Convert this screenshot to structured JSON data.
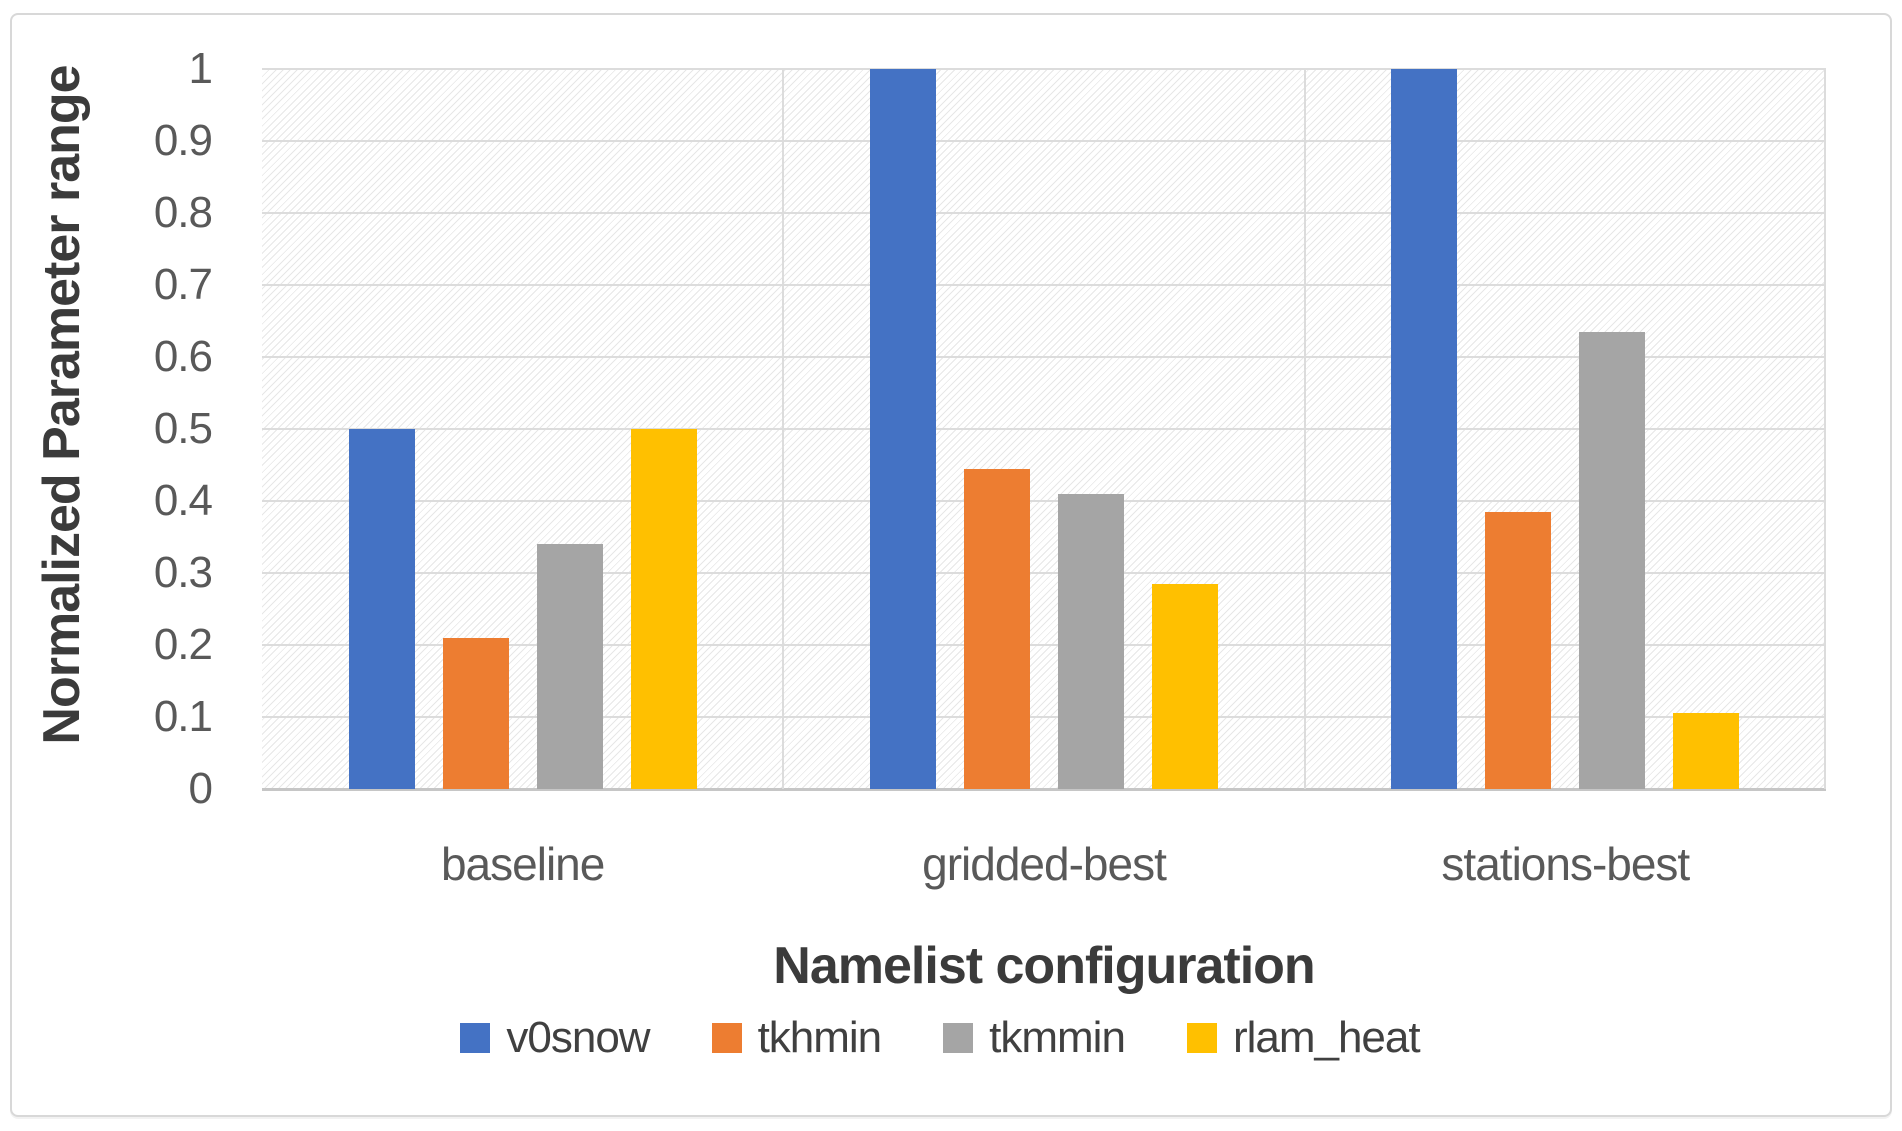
{
  "figure": {
    "y_axis": {
      "title": "Normalized Parameter range",
      "ticks": [
        "1",
        "0.9",
        "0.8",
        "0.7",
        "0.6",
        "0.5",
        "0.4",
        "0.3",
        "0.2",
        "0.1",
        "0"
      ]
    },
    "x_axis": {
      "title": "Namelist configuration",
      "categories": [
        "baseline",
        "gridded-best",
        "stations-best"
      ]
    },
    "legend": [
      {
        "label": "v0snow",
        "color": "#4472C4"
      },
      {
        "label": "tkhmin",
        "color": "#ED7D31"
      },
      {
        "label": "tkmmin",
        "color": "#A5A5A5"
      },
      {
        "label": "rlam_heat",
        "color": "#FFC000"
      }
    ]
  },
  "chart_data": {
    "type": "bar",
    "categories": [
      "baseline",
      "gridded-best",
      "stations-best"
    ],
    "series": [
      {
        "name": "v0snow",
        "color": "#4472C4",
        "values": [
          0.5,
          1.0,
          1.0
        ]
      },
      {
        "name": "tkhmin",
        "color": "#ED7D31",
        "values": [
          0.21,
          0.445,
          0.385
        ]
      },
      {
        "name": "tkmmin",
        "color": "#A5A5A5",
        "values": [
          0.34,
          0.41,
          0.635
        ]
      },
      {
        "name": "rlam_heat",
        "color": "#FFC000",
        "values": [
          0.5,
          0.285,
          0.105
        ]
      }
    ],
    "xlabel": "Namelist configuration",
    "ylabel": "Normalized Parameter range",
    "ylim": [
      0,
      1
    ],
    "ytick_step": 0.1,
    "grid": true,
    "legend_position": "bottom",
    "plot_background": "diagonal-hatch"
  }
}
